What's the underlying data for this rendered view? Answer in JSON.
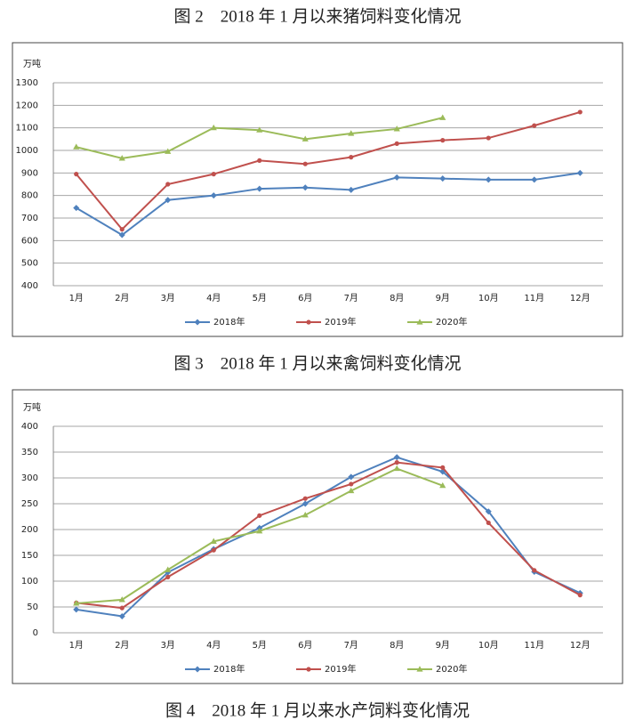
{
  "captions": [
    "图 2　2018 年 1 月以来猪饲料变化情况",
    "图 3　2018 年 1 月以来禽饲料变化情况",
    "图 4　2018 年 1 月以来水产饲料变化情况"
  ],
  "chart_data": [
    {
      "type": "line",
      "y_label": "万吨",
      "grid": true,
      "legend": "bottom",
      "categories": [
        "1月",
        "2月",
        "3月",
        "4月",
        "5月",
        "6月",
        "7月",
        "8月",
        "9月",
        "10月",
        "11月",
        "12月"
      ],
      "ylim": [
        400,
        1300
      ],
      "yticks": [
        400,
        500,
        600,
        700,
        800,
        900,
        1000,
        1100,
        1200,
        1300
      ],
      "series": [
        {
          "name": "2018年",
          "color": "#4f81bd",
          "marker": "diamond",
          "values": [
            745,
            625,
            780,
            800,
            830,
            835,
            825,
            880,
            875,
            870,
            870,
            900
          ]
        },
        {
          "name": "2019年",
          "color": "#c0504d",
          "marker": "circle",
          "values": [
            895,
            650,
            850,
            895,
            955,
            940,
            970,
            1030,
            1045,
            1055,
            1110,
            1170
          ]
        },
        {
          "name": "2020年",
          "color": "#9bbb59",
          "marker": "triangle",
          "values": [
            1015,
            965,
            995,
            1100,
            1090,
            1050,
            1075,
            1095,
            1145,
            null,
            null,
            null
          ]
        }
      ]
    },
    {
      "type": "line",
      "y_label": "万吨",
      "grid": true,
      "legend": "bottom",
      "categories": [
        "1月",
        "2月",
        "3月",
        "4月",
        "5月",
        "6月",
        "7月",
        "8月",
        "9月",
        "10月",
        "11月",
        "12月"
      ],
      "ylim": [
        0,
        400
      ],
      "yticks": [
        0,
        50,
        100,
        150,
        200,
        250,
        300,
        350,
        400
      ],
      "series": [
        {
          "name": "2018年",
          "color": "#4f81bd",
          "marker": "diamond",
          "values": [
            45,
            32,
            117,
            162,
            203,
            250,
            302,
            340,
            312,
            235,
            118,
            77
          ]
        },
        {
          "name": "2019年",
          "color": "#c0504d",
          "marker": "circle",
          "values": [
            58,
            48,
            108,
            160,
            227,
            260,
            288,
            330,
            320,
            213,
            121,
            73
          ]
        },
        {
          "name": "2020年",
          "color": "#9bbb59",
          "marker": "triangle",
          "values": [
            57,
            64,
            122,
            177,
            197,
            228,
            275,
            318,
            285,
            null,
            null,
            null
          ]
        }
      ]
    }
  ]
}
